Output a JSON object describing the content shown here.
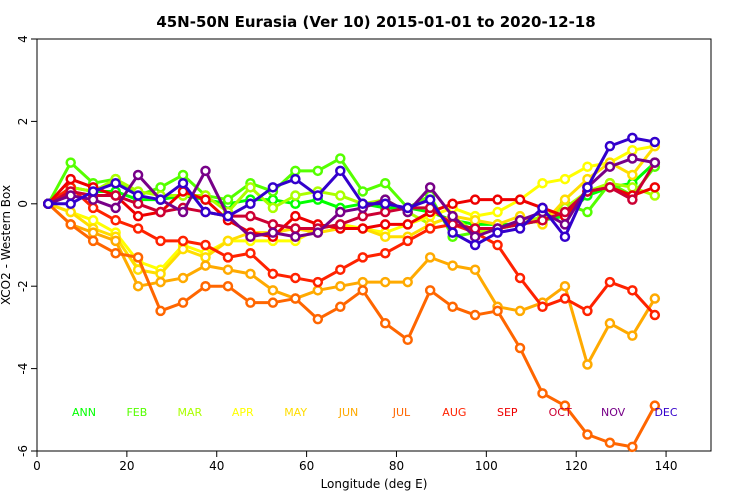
{
  "chart_data": {
    "type": "line",
    "title": "45N-50N Eurasia (Ver 10)   2015-01-01 to 2020-12-18",
    "xlabel": "Longitude (deg E)",
    "ylabel": "XCO2 - Western Box",
    "xlim": [
      0,
      150
    ],
    "ylim": [
      -6,
      4
    ],
    "xticks": [
      0,
      20,
      40,
      60,
      80,
      100,
      120,
      140
    ],
    "yticks": [
      -6,
      -4,
      -2,
      0,
      2,
      4
    ],
    "grid": false,
    "legend_placement": "bottom (in-plot row)",
    "x": [
      2.5,
      7.5,
      12.5,
      17.5,
      22.5,
      27.5,
      32.5,
      37.5,
      42.5,
      47.5,
      52.5,
      57.5,
      62.5,
      67.5,
      72.5,
      77.5,
      82.5,
      87.5,
      92.5,
      97.5,
      102.5,
      107.5,
      112.5,
      117.5,
      122.5,
      127.5,
      132.5,
      137.5
    ],
    "series": [
      {
        "name": "ANN",
        "color": "#00ff00",
        "values": [
          0,
          0.4,
          0.3,
          0.3,
          0.1,
          0.1,
          0.2,
          0.1,
          0.0,
          0.1,
          0.1,
          0.0,
          0.1,
          -0.1,
          0.0,
          -0.1,
          -0.1,
          -0.2,
          -0.4,
          -0.5,
          -0.5,
          -0.5,
          -0.4,
          -0.3,
          0.2,
          0.4,
          0.5,
          1.0
        ]
      },
      {
        "name": "FEB",
        "color": "#55ff00",
        "values": [
          0,
          1.0,
          0.5,
          0.6,
          0.2,
          0.4,
          0.7,
          0.2,
          0.1,
          0.5,
          0.3,
          0.8,
          0.8,
          1.1,
          0.3,
          0.5,
          -0.1,
          0.2,
          -0.8,
          -0.7,
          -0.6,
          -0.5,
          -0.4,
          0.0,
          -0.2,
          0.5,
          0.2,
          0.9
        ]
      },
      {
        "name": "MAR",
        "color": "#aaff00",
        "values": [
          0,
          0.4,
          0.3,
          0.6,
          0.3,
          0.2,
          0.2,
          0.2,
          -0.2,
          0.4,
          -0.1,
          0.2,
          0.3,
          0.2,
          0.0,
          0.1,
          -0.2,
          -0.5,
          -0.3,
          -0.7,
          -0.6,
          -0.5,
          -0.3,
          -0.1,
          0.3,
          0.5,
          0.4,
          0.2
        ]
      },
      {
        "name": "APR",
        "color": "#ffff00",
        "values": [
          0,
          -0.2,
          -0.4,
          -0.7,
          -1.4,
          -1.6,
          -1.0,
          -1.2,
          -0.9,
          -0.9,
          -0.9,
          -0.9,
          -0.6,
          -0.5,
          -0.6,
          -0.7,
          -0.5,
          -0.3,
          -0.1,
          -0.3,
          -0.2,
          0.1,
          0.5,
          0.6,
          0.9,
          1.0,
          1.3,
          1.4
        ]
      },
      {
        "name": "MAY",
        "color": "#ffdd00",
        "values": [
          0,
          -0.2,
          -0.6,
          -0.8,
          -1.6,
          -1.7,
          -1.1,
          -1.3,
          -0.9,
          -0.7,
          -0.7,
          -0.6,
          -0.7,
          -0.6,
          -0.6,
          -0.8,
          -0.8,
          -0.5,
          -0.3,
          -0.4,
          -0.5,
          -0.3,
          -0.5,
          0.1,
          0.6,
          1.0,
          0.7,
          1.4
        ]
      },
      {
        "name": "JUN",
        "color": "#ffaa00",
        "values": [
          0,
          -0.5,
          -0.7,
          -0.9,
          -2.0,
          -1.9,
          -1.8,
          -1.5,
          -1.6,
          -1.7,
          -2.1,
          -2.3,
          -2.1,
          -2.0,
          -1.9,
          -1.9,
          -1.9,
          -1.3,
          -1.5,
          -1.6,
          -2.5,
          -2.6,
          -2.4,
          -2.0,
          -3.9,
          -2.9,
          -3.2,
          -2.3
        ]
      },
      {
        "name": "JUL",
        "color": "#ff6600",
        "values": [
          0,
          -0.5,
          -0.9,
          -1.2,
          -1.3,
          -2.6,
          -2.4,
          -2.0,
          -2.0,
          -2.4,
          -2.4,
          -2.3,
          -2.8,
          -2.5,
          -2.1,
          -2.9,
          -3.3,
          -2.1,
          -2.5,
          -2.7,
          -2.6,
          -3.5,
          -4.6,
          -4.9,
          -5.6,
          -5.8,
          -5.9,
          -4.9
        ]
      },
      {
        "name": "AUG",
        "color": "#ff2200",
        "values": [
          0,
          0.4,
          -0.1,
          -0.4,
          -0.6,
          -0.9,
          -0.9,
          -1.0,
          -1.3,
          -1.2,
          -1.7,
          -1.8,
          -1.9,
          -1.6,
          -1.3,
          -1.2,
          -0.9,
          -0.6,
          -0.5,
          -0.7,
          -1.0,
          -1.8,
          -2.5,
          -2.3,
          -2.6,
          -1.9,
          -2.1,
          -2.7
        ]
      },
      {
        "name": "SEP",
        "color": "#ee0000",
        "values": [
          0,
          0.6,
          0.4,
          0.2,
          -0.3,
          -0.2,
          0.3,
          0.1,
          -0.4,
          -0.7,
          -0.8,
          -0.3,
          -0.5,
          -0.6,
          -0.6,
          -0.5,
          -0.5,
          -0.2,
          0.0,
          0.1,
          0.1,
          0.1,
          -0.1,
          -0.3,
          0.3,
          0.4,
          0.2,
          0.4
        ]
      },
      {
        "name": "OCT",
        "color": "#cc0033",
        "values": [
          0,
          0.3,
          0.2,
          0.2,
          0.0,
          -0.2,
          -0.1,
          -0.2,
          -0.3,
          -0.3,
          -0.5,
          -0.6,
          -0.6,
          -0.5,
          -0.3,
          -0.2,
          -0.1,
          -0.1,
          -0.5,
          -0.6,
          -0.6,
          -0.5,
          -0.4,
          -0.2,
          0.3,
          0.4,
          0.1,
          1.0
        ]
      },
      {
        "name": "NOV",
        "color": "#770088",
        "values": [
          0,
          0.2,
          0.1,
          -0.1,
          0.7,
          0.1,
          -0.2,
          0.8,
          -0.3,
          -0.8,
          -0.7,
          -0.8,
          -0.7,
          -0.2,
          -0.1,
          0.1,
          -0.2,
          0.4,
          -0.3,
          -0.8,
          -0.6,
          -0.4,
          -0.2,
          -0.5,
          0.4,
          0.9,
          1.1,
          1.0
        ]
      },
      {
        "name": "DEC",
        "color": "#3300cc",
        "values": [
          0,
          0.0,
          0.3,
          0.5,
          0.2,
          0.1,
          0.5,
          -0.2,
          -0.3,
          0.0,
          0.4,
          0.6,
          0.2,
          0.8,
          0.0,
          0.0,
          -0.1,
          0.1,
          -0.7,
          -1.0,
          -0.7,
          -0.6,
          -0.1,
          -0.8,
          0.4,
          1.4,
          1.6,
          1.5
        ]
      }
    ]
  }
}
